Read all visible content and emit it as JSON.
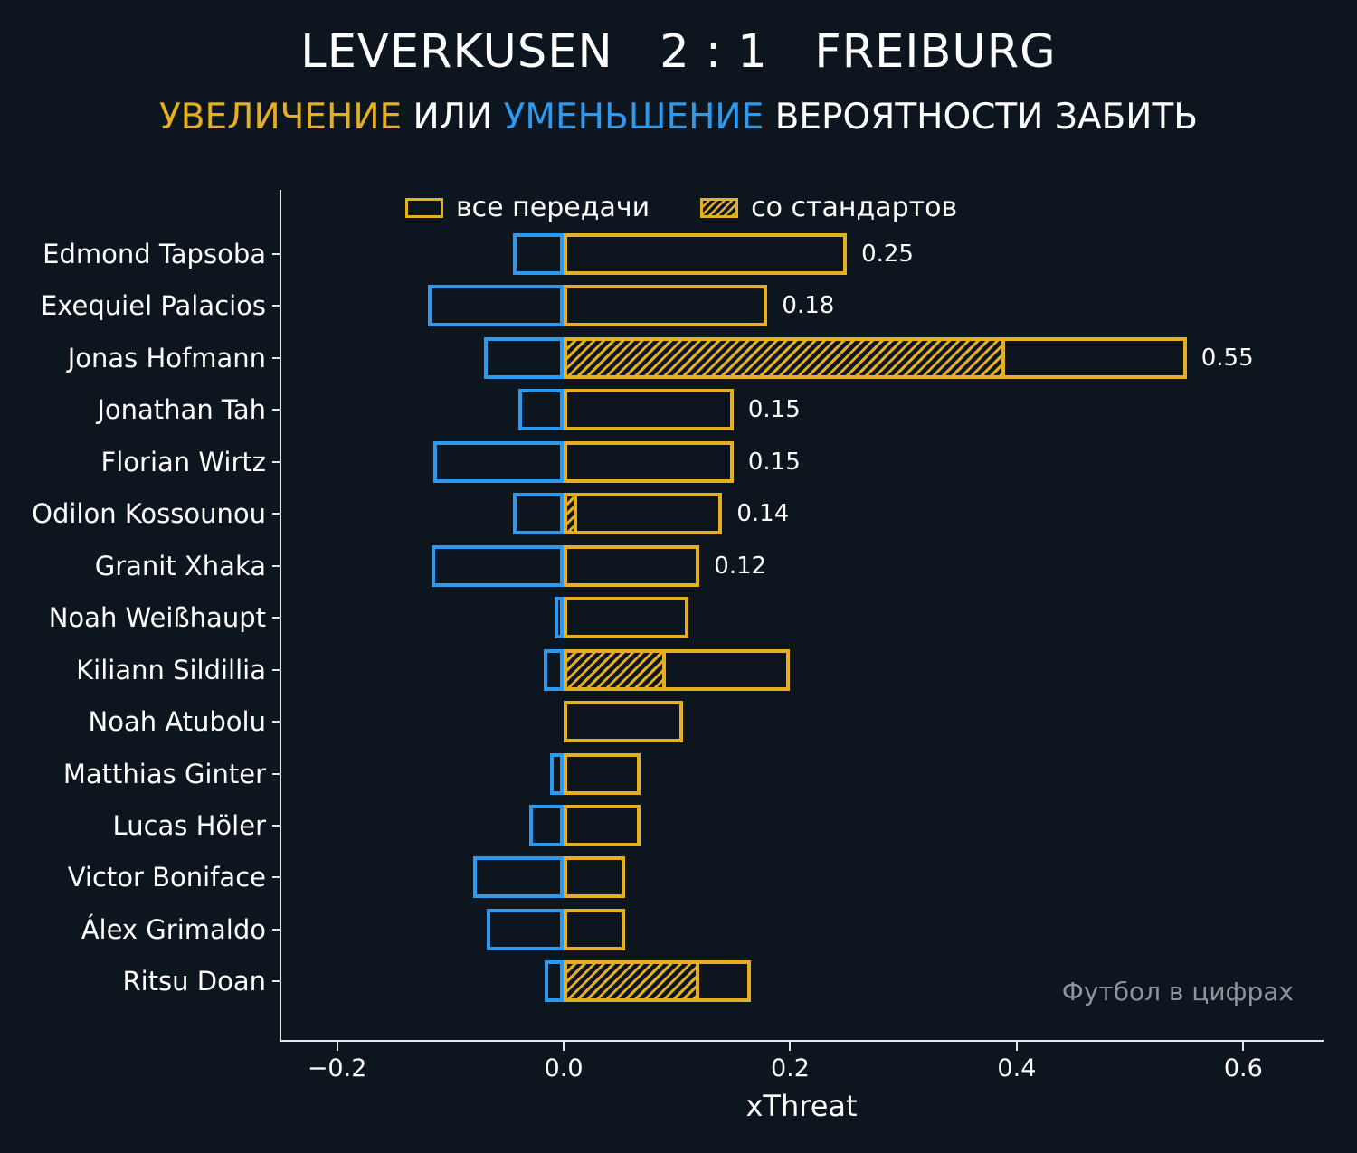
{
  "header": {
    "title": "LEVERKUSEN   2 : 1   FREIBURG",
    "subtitle_increase": "УВЕЛИЧЕНИЕ",
    "subtitle_or": " ИЛИ ",
    "subtitle_decrease": "УМЕНЬШЕНИЕ",
    "subtitle_rest": " ВЕРОЯТНОСТИ ЗАБИТЬ"
  },
  "legend": {
    "all_passes": "все передачи",
    "set_pieces": "со стандартов"
  },
  "watermark": "Футбол в цифрах",
  "colors": {
    "gold": "#e4af20",
    "blue": "#2b9af0",
    "background": "#0d161e",
    "text": "#ffffff",
    "watermark": "#8d959d"
  },
  "chart_data": {
    "type": "bar",
    "orientation": "horizontal",
    "title": "LEVERKUSEN 2 : 1 FREIBURG",
    "subtitle": "УВЕЛИЧЕНИЕ ИЛИ УМЕНЬШЕНИЕ ВЕРОЯТНОСТИ ЗАБИТЬ",
    "xlabel": "xThreat",
    "ylabel": "",
    "xlim": [
      -0.25,
      0.67
    ],
    "grid": false,
    "legend_position": "top",
    "legend_entries": [
      "все передачи",
      "со стандартов"
    ],
    "xticks": [
      {
        "v": -0.2,
        "label": "−0.2"
      },
      {
        "v": 0.0,
        "label": "0.0"
      },
      {
        "v": 0.2,
        "label": "0.2"
      },
      {
        "v": 0.4,
        "label": "0.4"
      },
      {
        "v": 0.6,
        "label": "0.6"
      }
    ],
    "players": [
      {
        "name": "Edmond Tapsoba",
        "positive": 0.25,
        "negative": -0.045,
        "set_piece": 0,
        "value_label": "0.25"
      },
      {
        "name": "Exequiel Palacios",
        "positive": 0.18,
        "negative": -0.12,
        "set_piece": 0,
        "value_label": "0.18"
      },
      {
        "name": "Jonas Hofmann",
        "positive": 0.55,
        "negative": -0.07,
        "set_piece": 0.39,
        "value_label": "0.55"
      },
      {
        "name": "Jonathan Tah",
        "positive": 0.15,
        "negative": -0.04,
        "set_piece": 0,
        "value_label": "0.15"
      },
      {
        "name": "Florian Wirtz",
        "positive": 0.15,
        "negative": -0.115,
        "set_piece": 0,
        "value_label": "0.15"
      },
      {
        "name": "Odilon Kossounou",
        "positive": 0.14,
        "negative": -0.045,
        "set_piece": 0.012,
        "value_label": "0.14"
      },
      {
        "name": "Granit Xhaka",
        "positive": 0.12,
        "negative": -0.117,
        "set_piece": 0,
        "value_label": "0.12"
      },
      {
        "name": "Noah Weißhaupt",
        "positive": 0.11,
        "negative": -0.008,
        "set_piece": 0,
        "value_label": ""
      },
      {
        "name": "Kiliann Sildillia",
        "positive": 0.2,
        "negative": -0.018,
        "set_piece": 0.09,
        "value_label": ""
      },
      {
        "name": "Noah Atubolu",
        "positive": 0.105,
        "negative": 0,
        "set_piece": 0,
        "value_label": ""
      },
      {
        "name": "Matthias Ginter",
        "positive": 0.068,
        "negative": -0.012,
        "set_piece": 0,
        "value_label": ""
      },
      {
        "name": "Lucas Höler",
        "positive": 0.068,
        "negative": -0.03,
        "set_piece": 0,
        "value_label": ""
      },
      {
        "name": "Victor Boniface",
        "positive": 0.054,
        "negative": -0.08,
        "set_piece": 0,
        "value_label": ""
      },
      {
        "name": "Álex Grimaldo",
        "positive": 0.054,
        "negative": -0.068,
        "set_piece": 0,
        "value_label": ""
      },
      {
        "name": "Ritsu Doan",
        "positive": 0.165,
        "negative": -0.017,
        "set_piece": 0.12,
        "value_label": ""
      }
    ]
  }
}
